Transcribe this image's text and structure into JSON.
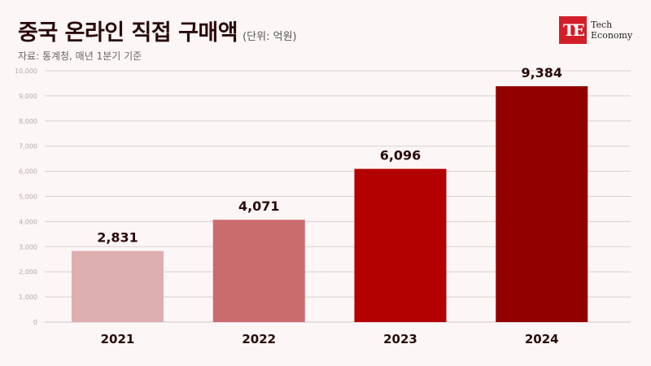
{
  "header": {
    "title": "중국 온라인 직접 구매액",
    "unit": "(단위: 억원)",
    "source": "자료: 통계청, 매년 1분기 기준"
  },
  "logo": {
    "mark": "TE",
    "line1": "Tech",
    "line2": "Economy"
  },
  "chart_data": {
    "type": "bar",
    "categories": [
      "2021",
      "2022",
      "2023",
      "2024"
    ],
    "values": [
      2831,
      4071,
      6096,
      9384
    ],
    "value_labels": [
      "2,831",
      "4,071",
      "6,096",
      "9,384"
    ],
    "bar_colors": [
      "#dfaeb0",
      "#ca6b6d",
      "#b30000",
      "#920000"
    ],
    "ylim": [
      0,
      10000
    ],
    "yticks": [
      0,
      1000,
      2000,
      3000,
      4000,
      5000,
      6000,
      7000,
      8000,
      9000,
      10000
    ],
    "ytick_labels": [
      "0",
      "1,000",
      "2,000",
      "3,000",
      "4,000",
      "5,000",
      "6,000",
      "7,000",
      "8,000",
      "9,000",
      "10,000"
    ],
    "grid": true,
    "title": "중국 온라인 직접 구매액",
    "xlabel": "",
    "ylabel": ""
  }
}
